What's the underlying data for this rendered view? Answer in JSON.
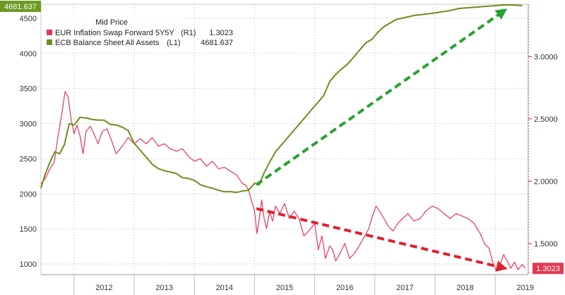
{
  "chart_data": {
    "type": "line",
    "title": "Mid Price",
    "x_range": [
      2011.45,
      2019.55
    ],
    "x_tick_labels": [
      "2012",
      "2013",
      "2014",
      "2015",
      "2016",
      "2017",
      "2018",
      "2019"
    ],
    "x_tick_values": [
      2012,
      2013,
      2014,
      2015,
      2016,
      2017,
      2018,
      2019
    ],
    "left_axis": {
      "ylim": [
        850,
        4700
      ],
      "ticks": [
        1000,
        1500,
        2000,
        2500,
        3000,
        3500,
        4000,
        4500
      ],
      "tick_labels": [
        "1000",
        "1500",
        "2000",
        "2500",
        "3000",
        "3500",
        "4000",
        "4500"
      ]
    },
    "right_axis": {
      "ylim": [
        1.25,
        3.42
      ],
      "ticks": [
        1.5,
        2.0,
        2.5,
        3.0
      ],
      "tick_labels": [
        "1.5000",
        "2.0000",
        "2.5000",
        "3.0000"
      ]
    },
    "series": [
      {
        "name": "EUR Inflation Swap Forward 5Y5Y",
        "axis": "R1",
        "axis_label": "(R1)",
        "last_value": "1.3023",
        "color": "#e8335a",
        "x": [
          2011.45,
          2011.52,
          2011.6,
          2011.67,
          2011.73,
          2011.8,
          2011.85,
          2011.9,
          2011.95,
          2012.0,
          2012.05,
          2012.1,
          2012.15,
          2012.2,
          2012.27,
          2012.33,
          2012.4,
          2012.47,
          2012.55,
          2012.62,
          2012.7,
          2012.8,
          2012.9,
          2013.0,
          2013.1,
          2013.2,
          2013.3,
          2013.4,
          2013.5,
          2013.6,
          2013.7,
          2013.8,
          2013.9,
          2014.0,
          2014.1,
          2014.2,
          2014.3,
          2014.4,
          2014.5,
          2014.6,
          2014.7,
          2014.8,
          2014.85,
          2014.9,
          2014.95,
          2015.0,
          2015.04,
          2015.08,
          2015.12,
          2015.16,
          2015.2,
          2015.25,
          2015.3,
          2015.35,
          2015.42,
          2015.5,
          2015.58,
          2015.66,
          2015.74,
          2015.82,
          2015.9,
          2016.0,
          2016.06,
          2016.12,
          2016.18,
          2016.25,
          2016.3,
          2016.35,
          2016.42,
          2016.5,
          2016.58,
          2016.66,
          2016.74,
          2016.82,
          2016.9,
          2016.96,
          2017.02,
          2017.08,
          2017.15,
          2017.22,
          2017.3,
          2017.38,
          2017.46,
          2017.55,
          2017.65,
          2017.75,
          2017.85,
          2017.95,
          2018.05,
          2018.15,
          2018.25,
          2018.35,
          2018.45,
          2018.55,
          2018.65,
          2018.75,
          2018.82,
          2018.9,
          2018.96,
          2019.02,
          2019.08,
          2019.14,
          2019.2,
          2019.26,
          2019.32,
          2019.38,
          2019.45,
          2019.5
        ],
        "values": [
          1.98,
          2.02,
          2.1,
          2.15,
          2.35,
          2.55,
          2.72,
          2.68,
          2.5,
          2.38,
          2.45,
          2.36,
          2.22,
          2.4,
          2.44,
          2.38,
          2.3,
          2.4,
          2.42,
          2.33,
          2.22,
          2.28,
          2.35,
          2.3,
          2.34,
          2.3,
          2.35,
          2.28,
          2.3,
          2.26,
          2.24,
          2.26,
          2.2,
          2.16,
          2.18,
          2.12,
          2.16,
          2.1,
          2.11,
          2.08,
          2.05,
          1.98,
          1.97,
          1.93,
          1.84,
          1.76,
          1.58,
          1.7,
          1.85,
          1.7,
          1.62,
          1.75,
          1.68,
          1.8,
          1.74,
          1.82,
          1.7,
          1.76,
          1.7,
          1.56,
          1.6,
          1.66,
          1.45,
          1.56,
          1.38,
          1.48,
          1.45,
          1.36,
          1.42,
          1.5,
          1.38,
          1.42,
          1.48,
          1.55,
          1.62,
          1.72,
          1.8,
          1.76,
          1.7,
          1.64,
          1.6,
          1.66,
          1.7,
          1.74,
          1.68,
          1.7,
          1.76,
          1.8,
          1.78,
          1.74,
          1.7,
          1.74,
          1.72,
          1.7,
          1.66,
          1.58,
          1.5,
          1.46,
          1.35,
          1.28,
          1.33,
          1.41,
          1.36,
          1.3,
          1.35,
          1.29,
          1.33,
          1.3
        ]
      },
      {
        "name": "ECB Balance Sheet All Assets",
        "axis": "L1",
        "axis_label": "(L1)",
        "last_value": "4681.637",
        "color": "#6b8e1e",
        "x": [
          2011.45,
          2011.52,
          2011.6,
          2011.68,
          2011.76,
          2011.84,
          2011.92,
          2012.0,
          2012.1,
          2012.2,
          2012.3,
          2012.4,
          2012.5,
          2012.6,
          2012.7,
          2012.8,
          2012.9,
          2013.0,
          2013.1,
          2013.2,
          2013.3,
          2013.4,
          2013.5,
          2013.6,
          2013.7,
          2013.8,
          2013.9,
          2014.0,
          2014.1,
          2014.2,
          2014.3,
          2014.4,
          2014.5,
          2014.6,
          2014.7,
          2014.8,
          2014.9,
          2015.0,
          2015.08,
          2015.16,
          2015.25,
          2015.35,
          2015.45,
          2015.55,
          2015.65,
          2015.75,
          2015.85,
          2015.95,
          2016.05,
          2016.15,
          2016.25,
          2016.35,
          2016.45,
          2016.55,
          2016.65,
          2016.75,
          2016.85,
          2016.95,
          2017.05,
          2017.15,
          2017.25,
          2017.35,
          2017.45,
          2017.55,
          2017.65,
          2017.75,
          2017.85,
          2017.95,
          2018.1,
          2018.25,
          2018.4,
          2018.55,
          2018.7,
          2018.85,
          2019.0,
          2019.15,
          2019.3,
          2019.45
        ],
        "values": [
          2080,
          2280,
          2450,
          2600,
          2570,
          2700,
          3000,
          2980,
          3090,
          3080,
          3060,
          3050,
          3050,
          2990,
          2980,
          2950,
          2900,
          2720,
          2620,
          2520,
          2420,
          2360,
          2330,
          2310,
          2290,
          2230,
          2220,
          2190,
          2130,
          2100,
          2080,
          2050,
          2030,
          2030,
          2020,
          2040,
          2050,
          2150,
          2130,
          2300,
          2450,
          2600,
          2700,
          2800,
          2900,
          3000,
          3100,
          3200,
          3300,
          3400,
          3600,
          3700,
          3780,
          3850,
          3950,
          4050,
          4150,
          4200,
          4300,
          4380,
          4430,
          4480,
          4500,
          4520,
          4540,
          4550,
          4560,
          4570,
          4590,
          4610,
          4640,
          4650,
          4660,
          4670,
          4680,
          4690,
          4690,
          4680
        ]
      }
    ],
    "annotations": [
      {
        "type": "arrow",
        "color": "#27a22d",
        "from": {
          "x": 2015.03,
          "yL": 2130
        },
        "to": {
          "x": 2019.17,
          "yL": 4620
        }
      },
      {
        "type": "arrow",
        "color": "#e0202a",
        "from": {
          "x": 2015.03,
          "yR": 1.78
        },
        "to": {
          "x": 2019.17,
          "yR": 1.3
        }
      }
    ],
    "legend": {
      "title": "Mid Price",
      "placement": "top-left",
      "entries": [
        {
          "label": "EUR Inflation Swap Forward 5Y5Y",
          "axis": "(R1)",
          "value": "1.3023"
        },
        {
          "label": "ECB Balance Sheet All Assets",
          "axis": "(L1)",
          "value": "4681.637"
        }
      ]
    },
    "badges": {
      "left_last": "4681.637",
      "right_last": "1.3023"
    },
    "colors": {
      "red_series": "#e8335a",
      "green_series": "#6b8e1e",
      "green_arrow": "#27a22d",
      "red_arrow": "#e0202a",
      "red_badge": "#e23a52",
      "green_badge": "#6b9a22",
      "grid": "#b5b5b5",
      "tick_red": "#c2185b"
    }
  }
}
